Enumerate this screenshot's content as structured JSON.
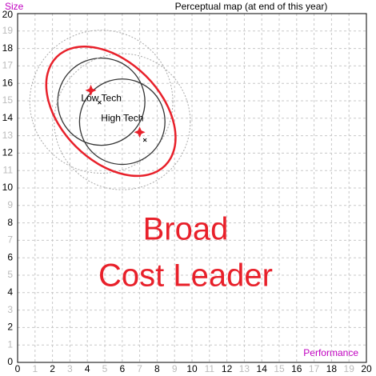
{
  "chart_data": {
    "type": "perceptual-map",
    "title": "Perceptual map (at end of this year)",
    "xlabel": "Performance",
    "ylabel": "Size",
    "xlim": [
      0,
      20
    ],
    "ylim": [
      0,
      20
    ],
    "xticks": [
      0,
      1,
      2,
      3,
      4,
      5,
      6,
      7,
      8,
      9,
      10,
      11,
      12,
      13,
      14,
      15,
      16,
      17,
      18,
      19,
      20
    ],
    "yticks": [
      0,
      1,
      2,
      3,
      4,
      5,
      6,
      7,
      8,
      9,
      10,
      11,
      12,
      13,
      14,
      15,
      16,
      17,
      18,
      19,
      20
    ],
    "grid": true,
    "segments": [
      {
        "name": "Low Tech",
        "circle": {
          "cx": 4.8,
          "cy": 14.95,
          "r": 2.5
        },
        "outer_r": 4.1,
        "ideal": {
          "x": 4.7,
          "y": 14.9
        },
        "product": {
          "x": 4.2,
          "y": 15.6
        }
      },
      {
        "name": "High Tech",
        "circle": {
          "cx": 6.0,
          "cy": 13.8,
          "r": 2.45
        },
        "outer_r": 3.9,
        "ideal": {
          "x": 7.3,
          "y": 12.75
        },
        "product": {
          "x": 7.0,
          "y": 13.2
        }
      }
    ],
    "product_color": "#e8202a",
    "ellipse": {
      "cx": 5.35,
      "cy": 14.4,
      "rx": 4.4,
      "ry": 2.85,
      "angle": 45,
      "color": "#e8202a"
    },
    "annotation": [
      "Broad",
      "Cost Leader"
    ],
    "annotation_color": "#e8202a"
  }
}
